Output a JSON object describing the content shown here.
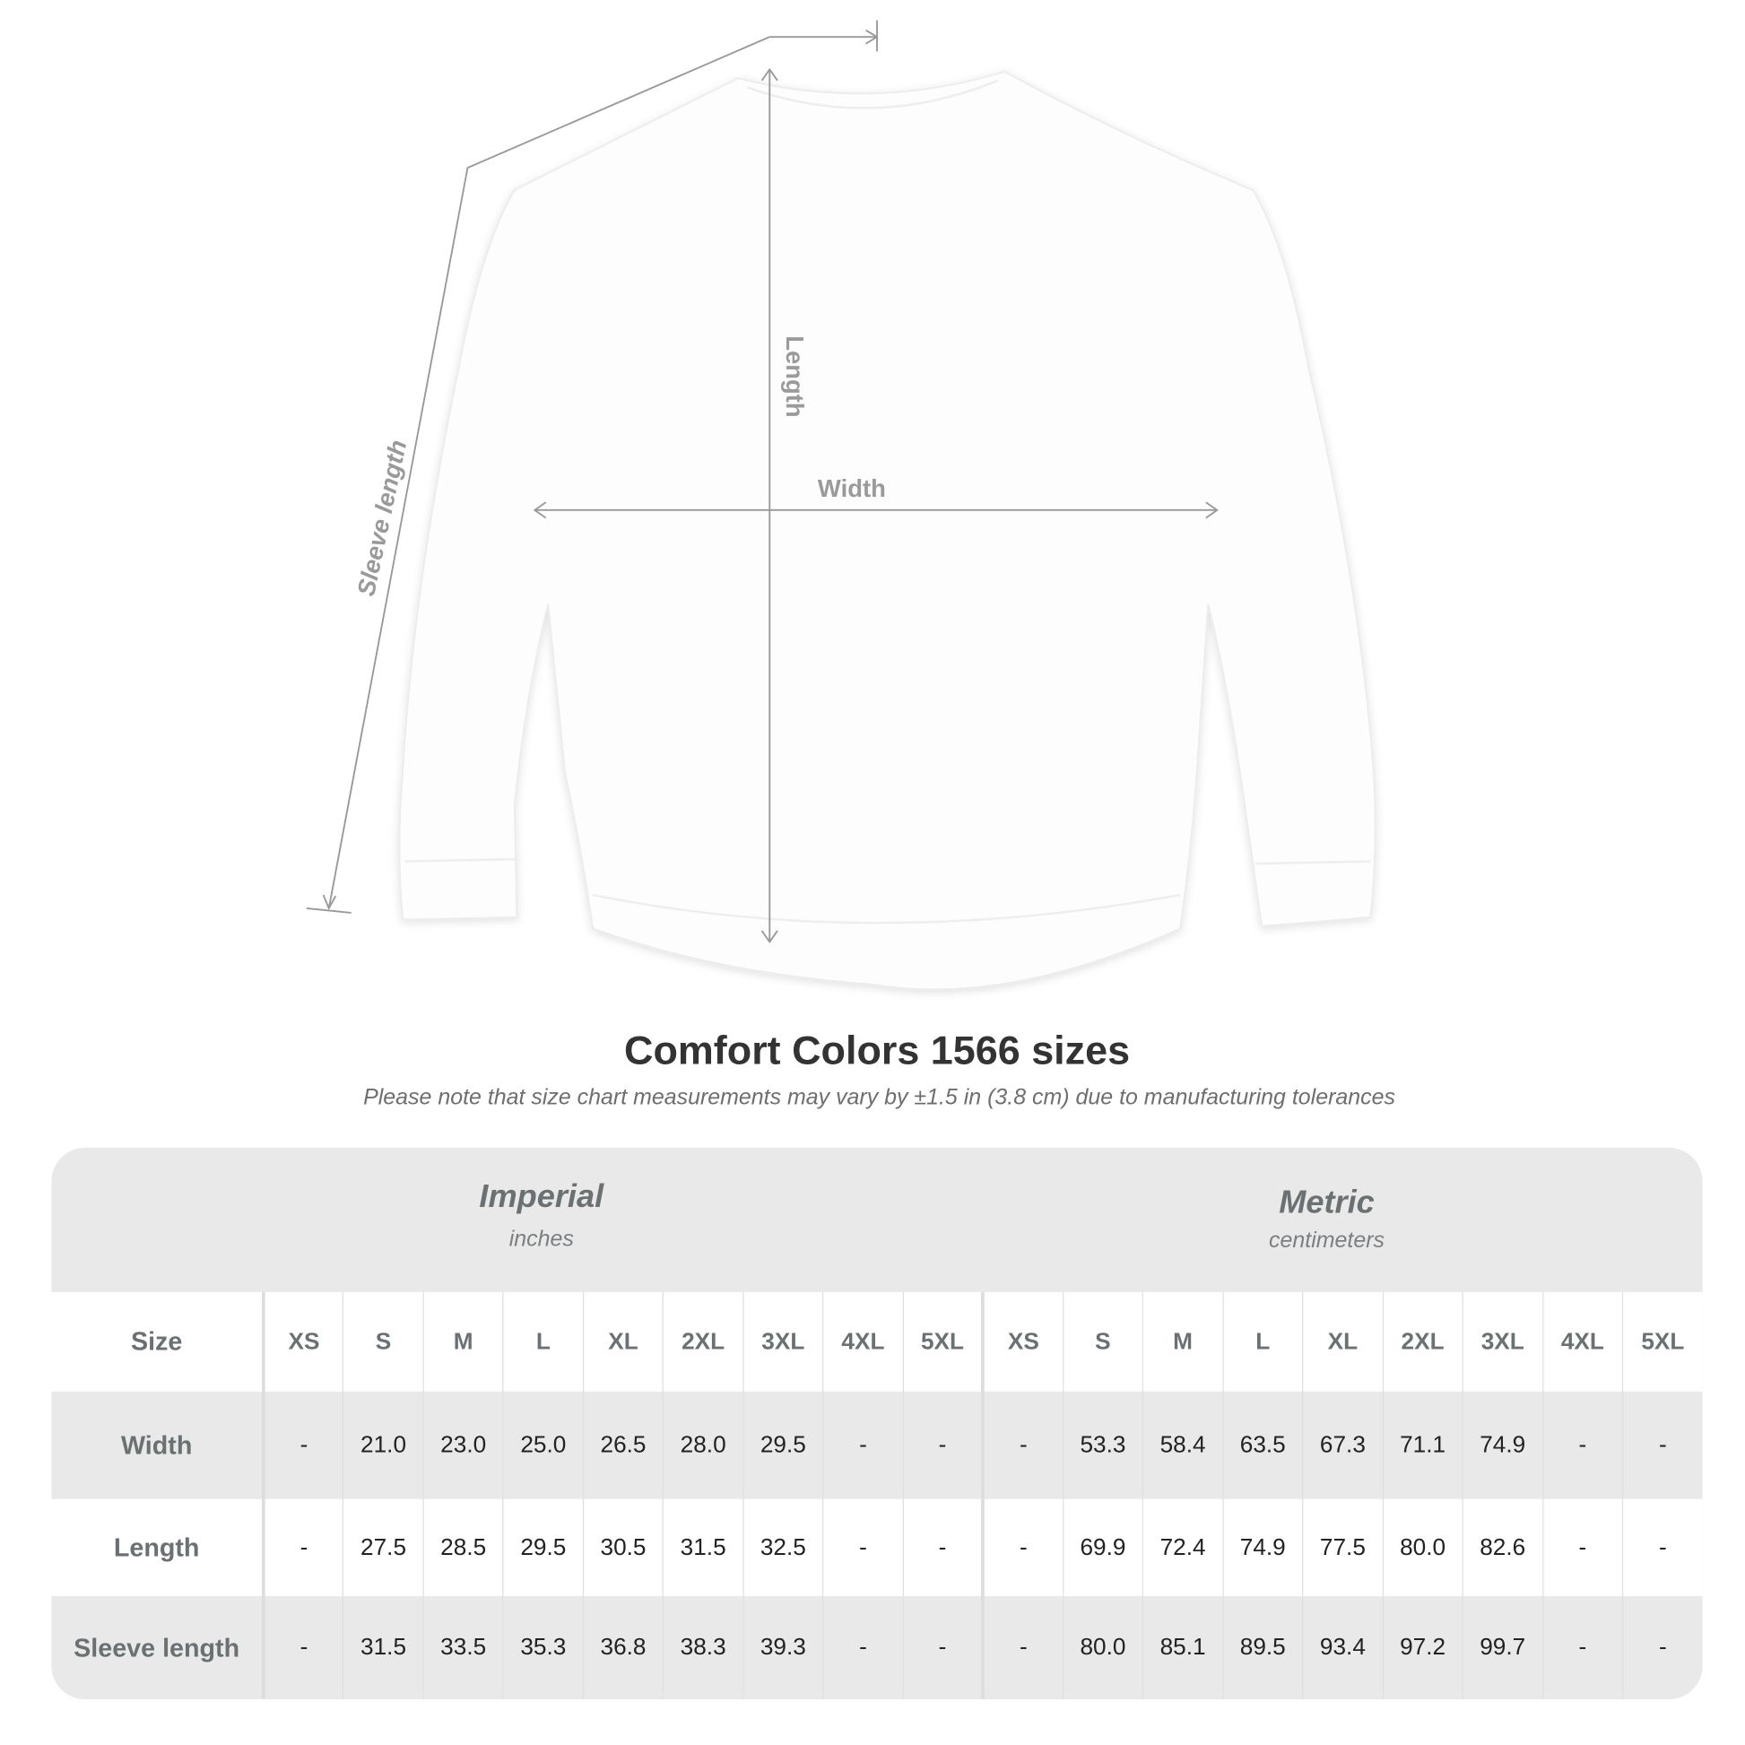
{
  "diagram": {
    "labels": {
      "length": "Length",
      "width": "Width",
      "sleeve": "Sleeve length"
    }
  },
  "title": "Comfort Colors 1566 sizes",
  "note": "Please note that size chart measurements may vary by ±1.5 in (3.8 cm) due to manufacturing tolerances",
  "imperial": {
    "name": "Imperial",
    "unit": "inches"
  },
  "metric": {
    "name": "Metric",
    "unit": "centimeters"
  },
  "table": {
    "size_label": "Size",
    "sizes": [
      "XS",
      "S",
      "M",
      "L",
      "XL",
      "2XL",
      "3XL",
      "4XL",
      "5XL",
      "XS",
      "S",
      "M",
      "L",
      "XL",
      "2XL",
      "3XL",
      "4XL",
      "5XL"
    ],
    "rows": [
      {
        "label": "Width",
        "values": [
          "-",
          "21.0",
          "23.0",
          "25.0",
          "26.5",
          "28.0",
          "29.5",
          "-",
          "-",
          "-",
          "53.3",
          "58.4",
          "63.5",
          "67.3",
          "71.1",
          "74.9",
          "-",
          "-"
        ]
      },
      {
        "label": "Length",
        "values": [
          "-",
          "27.5",
          "28.5",
          "29.5",
          "30.5",
          "31.5",
          "32.5",
          "-",
          "-",
          "-",
          "69.9",
          "72.4",
          "74.9",
          "77.5",
          "80.0",
          "82.6",
          "-",
          "-"
        ]
      },
      {
        "label": "Sleeve length",
        "values": [
          "-",
          "31.5",
          "33.5",
          "35.3",
          "36.8",
          "38.3",
          "39.3",
          "-",
          "-",
          "-",
          "80.0",
          "85.1",
          "89.5",
          "93.4",
          "97.2",
          "99.7",
          "-",
          "-"
        ]
      }
    ]
  }
}
